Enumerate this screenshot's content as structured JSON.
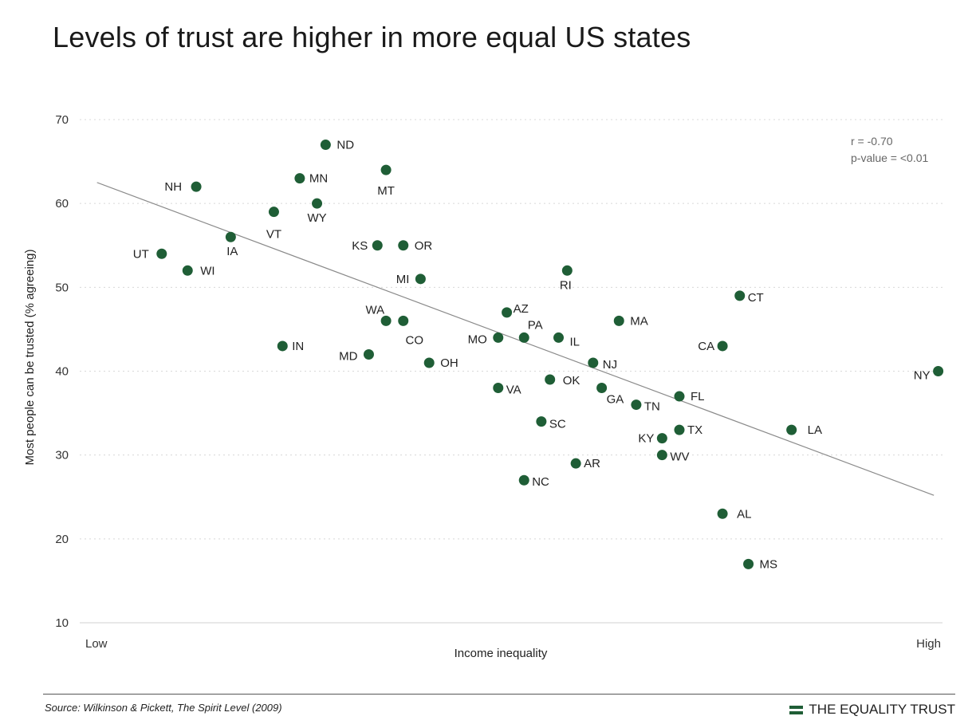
{
  "title": "Levels of trust are higher in more equal US states",
  "chart_data": {
    "type": "scatter",
    "title": "Levels of trust are higher in more equal US states",
    "xlabel": "Income inequality",
    "ylabel": "Most people can be trusted (% agreeing)",
    "x_low_label": "Low",
    "x_high_label": "High",
    "x_scale": "relative (no numeric ticks)",
    "xlim": [
      0,
      100
    ],
    "ylim": [
      10,
      70
    ],
    "yticks": [
      10,
      20,
      30,
      40,
      50,
      60,
      70
    ],
    "grid": "horizontal dotted",
    "point_color": "#1f5e36",
    "trend_line": {
      "y_at_x_min": 62.5,
      "y_at_x_max": 25.2
    },
    "stats": [
      "r = -0.70",
      "p-value = <0.01"
    ],
    "points": [
      {
        "label": "ND",
        "x": 28.5,
        "y": 67
      },
      {
        "label": "MT",
        "x": 35.5,
        "y": 64
      },
      {
        "label": "NH",
        "x": 13.5,
        "y": 62
      },
      {
        "label": "MN",
        "x": 25.5,
        "y": 63
      },
      {
        "label": "WY",
        "x": 27.5,
        "y": 60
      },
      {
        "label": "VT",
        "x": 22.5,
        "y": 59
      },
      {
        "label": "IA",
        "x": 17.5,
        "y": 56
      },
      {
        "label": "UT",
        "x": 9.5,
        "y": 54
      },
      {
        "label": "WI",
        "x": 12.5,
        "y": 52
      },
      {
        "label": "KS",
        "x": 34.5,
        "y": 55
      },
      {
        "label": "OR",
        "x": 37.5,
        "y": 55
      },
      {
        "label": "MI",
        "x": 39.5,
        "y": 51
      },
      {
        "label": "RI",
        "x": 56.5,
        "y": 52
      },
      {
        "label": "CT",
        "x": 76.5,
        "y": 49
      },
      {
        "label": "AZ",
        "x": 49.5,
        "y": 47
      },
      {
        "label": "WA",
        "x": 35.5,
        "y": 46
      },
      {
        "label": "CO",
        "x": 37.5,
        "y": 46
      },
      {
        "label": "MA",
        "x": 62.5,
        "y": 46
      },
      {
        "label": "IN",
        "x": 23.5,
        "y": 43
      },
      {
        "label": "MD",
        "x": 33.5,
        "y": 42
      },
      {
        "label": "MO",
        "x": 48.5,
        "y": 44
      },
      {
        "label": "PA",
        "x": 51.5,
        "y": 44
      },
      {
        "label": "IL",
        "x": 55.5,
        "y": 44
      },
      {
        "label": "CA",
        "x": 74.5,
        "y": 43
      },
      {
        "label": "OH",
        "x": 40.5,
        "y": 41
      },
      {
        "label": "NJ",
        "x": 59.5,
        "y": 41
      },
      {
        "label": "NY",
        "x": 99.5,
        "y": 40
      },
      {
        "label": "OK",
        "x": 54.5,
        "y": 39
      },
      {
        "label": "VA",
        "x": 48.5,
        "y": 38
      },
      {
        "label": "GA",
        "x": 60.5,
        "y": 38
      },
      {
        "label": "FL",
        "x": 69.5,
        "y": 37
      },
      {
        "label": "TN",
        "x": 64.5,
        "y": 36
      },
      {
        "label": "SC",
        "x": 53.5,
        "y": 34
      },
      {
        "label": "TX",
        "x": 69.5,
        "y": 33
      },
      {
        "label": "LA",
        "x": 82.5,
        "y": 33
      },
      {
        "label": "KY",
        "x": 67.5,
        "y": 32
      },
      {
        "label": "WV",
        "x": 67.5,
        "y": 30
      },
      {
        "label": "AR",
        "x": 57.5,
        "y": 29
      },
      {
        "label": "NC",
        "x": 51.5,
        "y": 27
      },
      {
        "label": "AL",
        "x": 74.5,
        "y": 23
      },
      {
        "label": "MS",
        "x": 77.5,
        "y": 17
      }
    ]
  },
  "footer": {
    "source": "Source: Wilkinson & Pickett, The Spirit Level (2009)",
    "brand": "THE EQUALITY TRUST",
    "brand_color": "#1f5e36"
  }
}
